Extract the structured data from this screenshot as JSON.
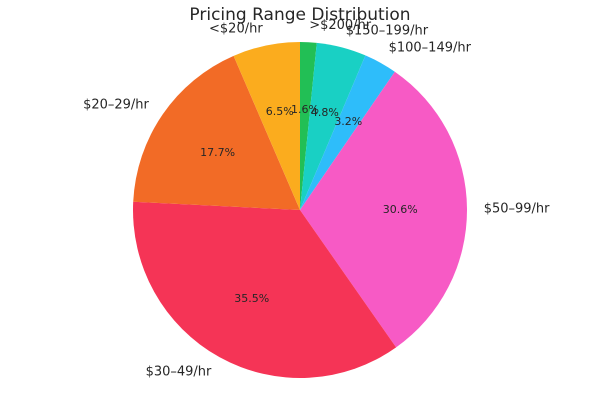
{
  "chart_data": {
    "type": "pie",
    "title": "Pricing Range Distribution",
    "slices": [
      {
        "label": ">$200/hr",
        "value": 1.6,
        "pct_label": "1.6%",
        "color": "#22bf55"
      },
      {
        "label": "$150–199/hr",
        "value": 4.8,
        "pct_label": "4.8%",
        "color": "#19d0c4"
      },
      {
        "label": "$100–149/hr",
        "value": 3.2,
        "pct_label": "3.2%",
        "color": "#2ebdfa"
      },
      {
        "label": "$50–99/hr",
        "value": 30.6,
        "pct_label": "30.6%",
        "color": "#f75ac5"
      },
      {
        "label": "$30–49/hr",
        "value": 35.5,
        "pct_label": "35.5%",
        "color": "#f53456"
      },
      {
        "label": "$20–29/hr",
        "value": 17.7,
        "pct_label": "17.7%",
        "color": "#f26b26"
      },
      {
        "label": "<$20/hr",
        "value": 6.5,
        "pct_label": "6.5%",
        "color": "#fbac1e"
      }
    ],
    "start_angle": "12 o'clock",
    "direction": "clockwise",
    "legend": "none"
  }
}
